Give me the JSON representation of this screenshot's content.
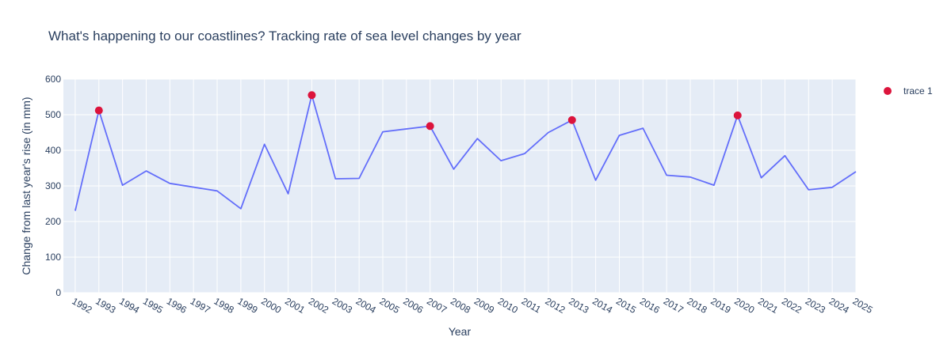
{
  "chart_data": {
    "type": "line",
    "title": "What's happening to our coastlines? Tracking rate of sea level changes by year",
    "xlabel": "Year",
    "ylabel": "Change from last year's rise (in mm)",
    "xlim": [
      1991.5,
      2025
    ],
    "ylim": [
      0,
      600
    ],
    "y_ticks": [
      0,
      100,
      200,
      300,
      400,
      500,
      600
    ],
    "x_ticks": [
      1992,
      1993,
      1994,
      1995,
      1996,
      1997,
      1998,
      1999,
      2000,
      2001,
      2002,
      2003,
      2004,
      2005,
      2006,
      2007,
      2008,
      2009,
      2010,
      2011,
      2012,
      2013,
      2014,
      2015,
      2016,
      2017,
      2018,
      2019,
      2020,
      2021,
      2022,
      2023,
      2024,
      2025
    ],
    "grid": true,
    "legend_position": "top-right",
    "line_series": {
      "color": "#636efa",
      "x": [
        1992,
        1993,
        1994,
        1995,
        1996,
        1998,
        1999,
        2000,
        2001,
        2002,
        2003,
        2004,
        2005,
        2007,
        2008,
        2009,
        2010,
        2011,
        2012,
        2013,
        2014,
        2015,
        2016,
        2017,
        2018,
        2019,
        2020,
        2021,
        2022,
        2023,
        2024,
        2025
      ],
      "y": [
        230,
        512,
        302,
        342,
        307,
        286,
        236,
        417,
        278,
        555,
        320,
        321,
        452,
        468,
        347,
        433,
        371,
        391,
        450,
        485,
        316,
        442,
        462,
        330,
        325,
        302,
        498,
        323,
        385,
        289,
        296,
        340
      ]
    },
    "marker_series": {
      "name": "trace 1",
      "color": "#dc143c",
      "x": [
        1993,
        2002,
        2007,
        2013,
        2020
      ],
      "y": [
        512,
        555,
        468,
        485,
        498
      ]
    }
  }
}
